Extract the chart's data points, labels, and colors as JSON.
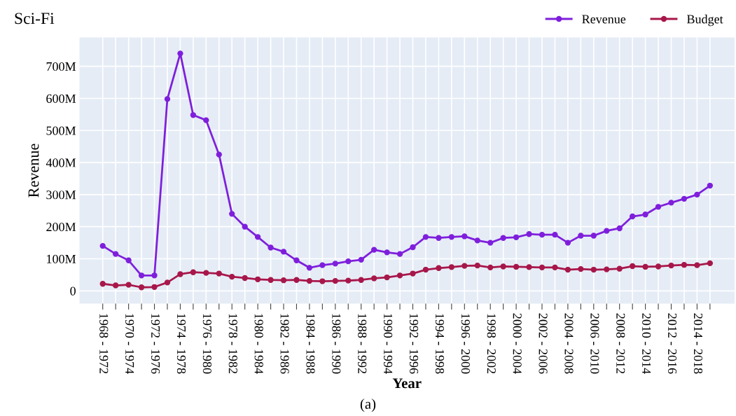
{
  "chart_data": {
    "type": "line",
    "title": "Sci-Fi",
    "xlabel": "Year",
    "ylabel": "Revenue",
    "annotations": [
      "(a)"
    ],
    "categories": [
      "1968 - 1972",
      null,
      "1970 - 1974",
      null,
      "1972 - 1976",
      null,
      "1974 - 1978",
      null,
      "1976 - 1980",
      null,
      "1978 - 1982",
      null,
      "1980 - 1984",
      null,
      "1982 - 1986",
      null,
      "1984 - 1988",
      null,
      "1986 - 1990",
      null,
      "1988 - 1992",
      null,
      "1990 - 1994",
      null,
      "1992 - 1996",
      null,
      "1994 - 1998",
      null,
      "1996 - 2000",
      null,
      "1998 - 2002",
      null,
      "2000 - 2004",
      null,
      "2002 - 2006",
      null,
      "2004 - 2008",
      null,
      "2006 - 2010",
      null,
      "2008 - 2012",
      null,
      "2010 - 2014",
      null,
      "2012 - 2016",
      null,
      "2014 - 2018",
      null
    ],
    "series": [
      {
        "name": "Revenue",
        "color": "#7f1fdc",
        "values": [
          140,
          115,
          95,
          48,
          48,
          598,
          740,
          548,
          532,
          425,
          240,
          200,
          168,
          135,
          122,
          95,
          72,
          80,
          85,
          92,
          97,
          128,
          120,
          115,
          136,
          168,
          165,
          168,
          170,
          157,
          150,
          165,
          167,
          177,
          175,
          175,
          150,
          172,
          172,
          187,
          195,
          232,
          238,
          262,
          275,
          287,
          300,
          328
        ]
      },
      {
        "name": "Budget",
        "color": "#a8174a",
        "values": [
          22,
          17,
          19,
          11,
          12,
          26,
          52,
          58,
          56,
          54,
          44,
          40,
          36,
          34,
          33,
          34,
          31,
          30,
          31,
          32,
          34,
          39,
          42,
          48,
          54,
          66,
          71,
          74,
          78,
          79,
          73,
          76,
          75,
          74,
          73,
          73,
          66,
          68,
          66,
          67,
          69,
          77,
          75,
          76,
          79,
          81,
          80,
          86
        ]
      }
    ],
    "ylim": [
      -40,
      790
    ],
    "yticks": [
      0,
      {
        "value": 100,
        "label": "100M"
      },
      {
        "value": 200,
        "label": "200M"
      },
      {
        "value": 300,
        "label": "300M"
      },
      {
        "value": 400,
        "label": "400M"
      },
      {
        "value": 500,
        "label": "500M"
      },
      {
        "value": 600,
        "label": "600M"
      },
      {
        "value": 700,
        "label": "700M"
      }
    ],
    "grid": true,
    "legend": "top right",
    "marker": "circle",
    "line_style": "solid"
  }
}
